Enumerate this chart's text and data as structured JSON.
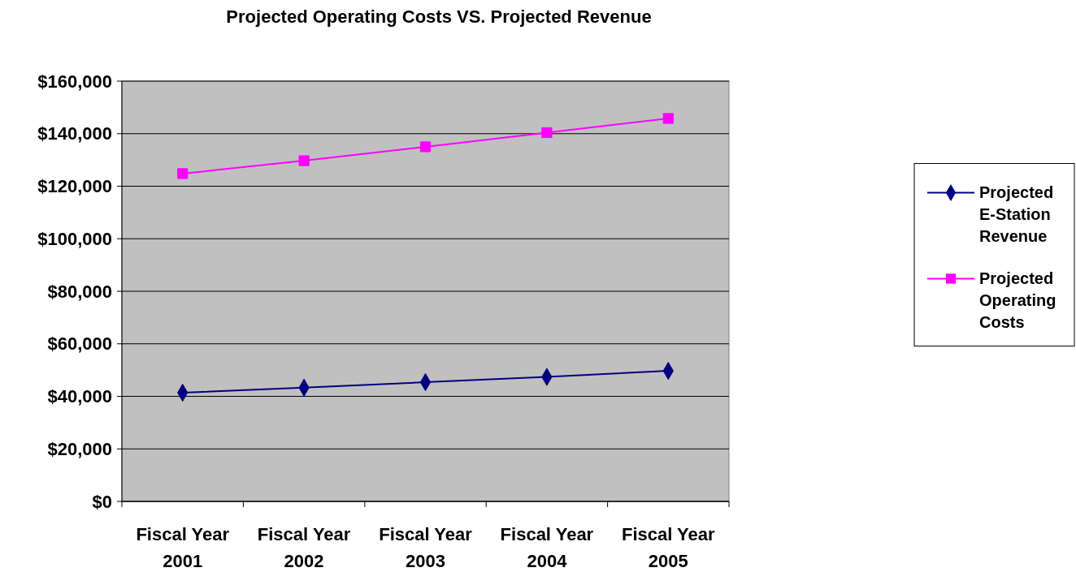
{
  "chart_data": {
    "type": "line",
    "title": "Projected Operating Costs VS. Projected Revenue",
    "categories": [
      "Fiscal Year 2001",
      "Fiscal Year 2002",
      "Fiscal Year 2003",
      "Fiscal Year 2004",
      "Fiscal Year 2005"
    ],
    "series": [
      {
        "name": "Projected E-Station Revenue",
        "color": "#000080",
        "marker": "diamond",
        "values": [
          41400,
          43300,
          45400,
          47400,
          49700
        ]
      },
      {
        "name": "Projected Operating Costs",
        "color": "#ff00ff",
        "marker": "square",
        "values": [
          124800,
          129700,
          135000,
          140400,
          145800
        ]
      }
    ],
    "ylim": [
      0,
      160000
    ],
    "yticks": [
      {
        "value": 0,
        "label": "$0"
      },
      {
        "value": 20000,
        "label": "$20,000"
      },
      {
        "value": 40000,
        "label": "$40,000"
      },
      {
        "value": 60000,
        "label": "$60,000"
      },
      {
        "value": 80000,
        "label": "$80,000"
      },
      {
        "value": 100000,
        "label": "$100,000"
      },
      {
        "value": 120000,
        "label": "$120,000"
      },
      {
        "value": 140000,
        "label": "$140,000"
      },
      {
        "value": 160000,
        "label": "$160,000"
      }
    ],
    "grid": "y",
    "legend": "right",
    "line_style": "solid"
  }
}
